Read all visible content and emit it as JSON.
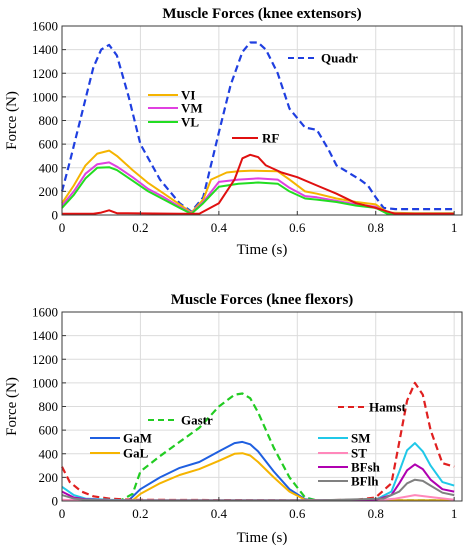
{
  "chart_data": [
    {
      "type": "line",
      "title": "Muscle Forces (knee extensors)",
      "xlabel": "Time (s)",
      "ylabel": "Force (N)",
      "xlim": [
        0,
        1.02
      ],
      "ylim": [
        0,
        1600
      ],
      "xticks": [
        "0",
        "0.2",
        "0.4",
        "0.6",
        "0.8",
        "1"
      ],
      "yticks": [
        "0",
        "200",
        "400",
        "600",
        "800",
        "1000",
        "1200",
        "1400",
        "1600"
      ],
      "grid": true,
      "series": [
        {
          "name": "Quadr",
          "color": "#1f3fe0",
          "dashed": true,
          "x": [
            0,
            0.02,
            0.05,
            0.08,
            0.1,
            0.12,
            0.14,
            0.17,
            0.2,
            0.25,
            0.3,
            0.33,
            0.36,
            0.4,
            0.43,
            0.46,
            0.48,
            0.5,
            0.52,
            0.55,
            0.58,
            0.62,
            0.65,
            0.68,
            0.7,
            0.73,
            0.76,
            0.78,
            0.8,
            0.82,
            0.85,
            0.9,
            1.0
          ],
          "y": [
            200,
            450,
            850,
            1250,
            1400,
            1440,
            1350,
            1000,
            600,
            300,
            100,
            30,
            150,
            700,
            1100,
            1380,
            1460,
            1460,
            1400,
            1200,
            900,
            740,
            720,
            550,
            420,
            360,
            300,
            250,
            150,
            60,
            50,
            50,
            50
          ]
        },
        {
          "name": "VI",
          "color": "#f5b400",
          "dashed": false,
          "x": [
            0,
            0.03,
            0.06,
            0.09,
            0.12,
            0.14,
            0.18,
            0.22,
            0.26,
            0.3,
            0.33,
            0.36,
            0.38,
            0.42,
            0.45,
            0.48,
            0.55,
            0.58,
            0.62,
            0.65,
            0.7,
            0.75,
            0.8,
            0.83,
            0.9,
            1.0
          ],
          "y": [
            100,
            250,
            420,
            520,
            545,
            500,
            380,
            270,
            180,
            90,
            20,
            130,
            300,
            360,
            370,
            375,
            370,
            300,
            200,
            180,
            140,
            110,
            90,
            20,
            15,
            15
          ]
        },
        {
          "name": "VM",
          "color": "#e040e0",
          "dashed": false,
          "x": [
            0,
            0.03,
            0.06,
            0.09,
            0.12,
            0.14,
            0.18,
            0.22,
            0.26,
            0.3,
            0.33,
            0.36,
            0.4,
            0.45,
            0.5,
            0.55,
            0.58,
            0.62,
            0.65,
            0.7,
            0.75,
            0.8,
            0.83,
            0.9,
            1.0
          ],
          "y": [
            80,
            200,
            350,
            430,
            445,
            410,
            320,
            220,
            150,
            70,
            15,
            110,
            280,
            300,
            310,
            300,
            230,
            160,
            150,
            120,
            90,
            70,
            15,
            10,
            10
          ]
        },
        {
          "name": "VL",
          "color": "#22dd22",
          "dashed": false,
          "x": [
            0,
            0.03,
            0.06,
            0.09,
            0.12,
            0.14,
            0.18,
            0.22,
            0.26,
            0.3,
            0.33,
            0.36,
            0.4,
            0.45,
            0.5,
            0.55,
            0.58,
            0.62,
            0.65,
            0.7,
            0.75,
            0.8,
            0.83,
            0.9,
            1.0
          ],
          "y": [
            60,
            170,
            310,
            400,
            405,
            380,
            290,
            200,
            130,
            60,
            10,
            100,
            240,
            265,
            275,
            265,
            200,
            140,
            130,
            110,
            80,
            60,
            10,
            10,
            10
          ]
        },
        {
          "name": "RF",
          "color": "#e01010",
          "dashed": false,
          "x": [
            0,
            0.08,
            0.1,
            0.12,
            0.14,
            0.3,
            0.35,
            0.4,
            0.44,
            0.46,
            0.48,
            0.5,
            0.52,
            0.56,
            0.6,
            0.65,
            0.7,
            0.75,
            0.8,
            0.85,
            1.0
          ],
          "y": [
            10,
            10,
            20,
            40,
            15,
            10,
            10,
            100,
            300,
            480,
            510,
            490,
            420,
            360,
            320,
            250,
            180,
            100,
            60,
            10,
            10
          ]
        }
      ]
    },
    {
      "type": "line",
      "title": "Muscle Forces (knee flexors)",
      "xlabel": "Time (s)",
      "ylabel": "Force (N)",
      "xlim": [
        0,
        1.02
      ],
      "ylim": [
        0,
        1600
      ],
      "xticks": [
        "0",
        "0.2",
        "0.4",
        "0.6",
        "0.8",
        "1"
      ],
      "yticks": [
        "0",
        "200",
        "400",
        "600",
        "800",
        "1000",
        "1200",
        "1400",
        "1600"
      ],
      "grid": true,
      "series": [
        {
          "name": "Gastr",
          "color": "#22cc22",
          "dashed": true,
          "x": [
            0,
            0.15,
            0.18,
            0.2,
            0.25,
            0.3,
            0.35,
            0.4,
            0.44,
            0.46,
            0.48,
            0.5,
            0.54,
            0.58,
            0.62,
            0.65,
            1.0
          ],
          "y": [
            5,
            5,
            60,
            250,
            380,
            500,
            620,
            800,
            900,
            910,
            870,
            750,
            450,
            200,
            30,
            5,
            5
          ]
        },
        {
          "name": "GaM",
          "color": "#1f5fe0",
          "dashed": false,
          "x": [
            0,
            0.17,
            0.2,
            0.25,
            0.3,
            0.35,
            0.4,
            0.44,
            0.46,
            0.48,
            0.5,
            0.54,
            0.58,
            0.62,
            0.65,
            1.0
          ],
          "y": [
            5,
            5,
            100,
            200,
            280,
            330,
            420,
            490,
            500,
            480,
            420,
            250,
            100,
            15,
            5,
            5
          ]
        },
        {
          "name": "GaL",
          "color": "#f5b400",
          "dashed": false,
          "x": [
            0,
            0.18,
            0.2,
            0.25,
            0.3,
            0.35,
            0.4,
            0.44,
            0.46,
            0.48,
            0.5,
            0.54,
            0.58,
            0.62,
            0.65,
            1.0
          ],
          "y": [
            5,
            5,
            60,
            150,
            220,
            270,
            340,
            400,
            405,
            385,
            330,
            200,
            80,
            10,
            5,
            5
          ]
        },
        {
          "name": "Hamst",
          "color": "#e02020",
          "dashed": true,
          "x": [
            0,
            0.02,
            0.05,
            0.08,
            0.12,
            0.18,
            0.65,
            0.75,
            0.8,
            0.84,
            0.86,
            0.88,
            0.9,
            0.92,
            0.94,
            0.97,
            1.0
          ],
          "y": [
            290,
            160,
            80,
            40,
            20,
            10,
            5,
            10,
            30,
            150,
            500,
            850,
            1000,
            900,
            600,
            320,
            290
          ]
        },
        {
          "name": "SM",
          "color": "#20c8e8",
          "dashed": false,
          "x": [
            0,
            0.03,
            0.06,
            0.12,
            0.18,
            0.65,
            0.8,
            0.84,
            0.86,
            0.88,
            0.9,
            0.92,
            0.94,
            0.97,
            1.0
          ],
          "y": [
            120,
            50,
            20,
            10,
            5,
            5,
            10,
            80,
            250,
            430,
            490,
            420,
            300,
            160,
            130
          ]
        },
        {
          "name": "ST",
          "color": "#ff88bb",
          "dashed": false,
          "x": [
            0,
            0.05,
            0.1,
            0.8,
            0.85,
            0.9,
            0.95,
            1.0
          ],
          "y": [
            10,
            5,
            5,
            5,
            20,
            50,
            30,
            10
          ]
        },
        {
          "name": "BFsh",
          "color": "#b000b0",
          "dashed": false,
          "x": [
            0,
            0.03,
            0.06,
            0.12,
            0.18,
            0.65,
            0.8,
            0.84,
            0.86,
            0.88,
            0.9,
            0.92,
            0.94,
            0.97,
            1.0
          ],
          "y": [
            80,
            30,
            15,
            5,
            5,
            5,
            10,
            50,
            150,
            260,
            310,
            270,
            180,
            100,
            80
          ]
        },
        {
          "name": "BFlh",
          "color": "#808080",
          "dashed": false,
          "x": [
            0,
            0.03,
            0.06,
            0.12,
            0.65,
            0.82,
            0.86,
            0.88,
            0.9,
            0.92,
            0.94,
            0.97,
            1.0
          ],
          "y": [
            50,
            20,
            10,
            5,
            5,
            20,
            80,
            150,
            180,
            170,
            130,
            70,
            50
          ]
        }
      ]
    }
  ]
}
